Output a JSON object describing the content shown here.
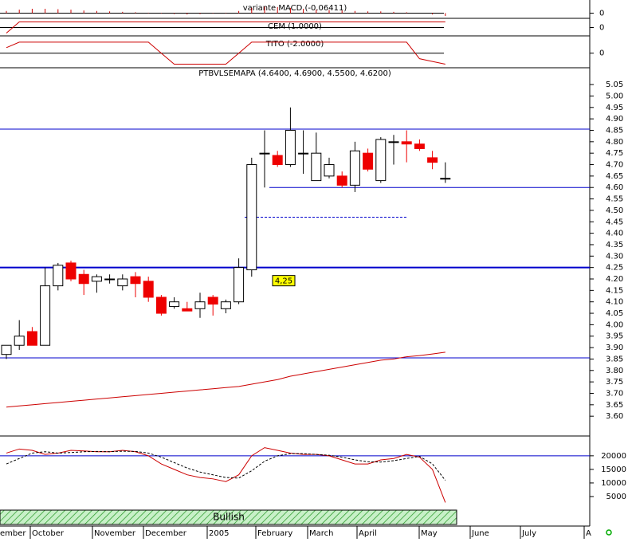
{
  "chart_data": [
    {
      "type": "bar",
      "title": "variante MACD (-0.06411)",
      "ylim": [
        -0.1,
        0.3
      ],
      "yticks": [
        0
      ],
      "color": "#cc0000",
      "values": [
        0.05,
        0.08,
        0.1,
        0.1,
        0.09,
        0.08,
        0.06,
        0.05,
        0.04,
        0.03,
        0.02,
        0.01,
        -0.01,
        -0.02,
        -0.03,
        -0.02,
        -0.01,
        0.01,
        0.05,
        0.12,
        0.15,
        0.14,
        0.12,
        0.1,
        0.08,
        0.07,
        0.06,
        0.05,
        0.04,
        0.04,
        0.03,
        0.02,
        0.0,
        -0.03,
        -0.06411
      ]
    },
    {
      "type": "line",
      "title": "CEM (1.0000)",
      "ylim": [
        -1.5,
        1.5
      ],
      "yticks": [
        0
      ],
      "series": [
        {
          "color": "#cc0000",
          "values": [
            -1,
            1,
            1,
            1,
            1,
            1,
            1,
            1,
            1,
            1,
            1,
            1,
            1,
            1,
            1,
            1,
            1,
            1,
            1,
            1,
            1,
            1,
            1,
            1,
            1,
            1,
            1,
            1,
            1,
            1,
            1,
            1,
            1,
            1,
            1
          ]
        }
      ]
    },
    {
      "type": "line",
      "title": "TITO (-2.0000)",
      "ylim": [
        -2.5,
        3
      ],
      "yticks": [
        0
      ],
      "series": [
        {
          "color": "#cc0000",
          "values": [
            1,
            2,
            2,
            2,
            2,
            2,
            2,
            2,
            2,
            2,
            2,
            2,
            0,
            -2,
            -2,
            -2,
            -2,
            -2,
            0,
            2,
            2,
            2,
            2,
            2,
            2,
            2,
            2,
            2,
            2,
            2,
            2,
            2,
            -1,
            -1.5,
            -2
          ]
        }
      ]
    },
    {
      "type": "candlestick",
      "title": "PTBVLSEMAPA (4.6400, 4.6900, 4.5500, 4.6200)",
      "ylim": [
        3.51,
        5.12
      ],
      "yticks": [
        {
          "value": 3.6,
          "label": "3.60"
        },
        {
          "value": 3.65,
          "label": "3.65"
        },
        {
          "value": 3.7,
          "label": "3.70"
        },
        {
          "value": 3.75,
          "label": "3.75"
        },
        {
          "value": 3.8,
          "label": "3.80"
        },
        {
          "value": 3.85,
          "label": "3.85"
        },
        {
          "value": 3.9,
          "label": "3.90"
        },
        {
          "value": 3.95,
          "label": "3.95"
        },
        {
          "value": 4.0,
          "label": "4.00"
        },
        {
          "value": 4.05,
          "label": "4.05"
        },
        {
          "value": 4.1,
          "label": "4.10"
        },
        {
          "value": 4.15,
          "label": "4.15"
        },
        {
          "value": 4.2,
          "label": "4.20"
        },
        {
          "value": 4.25,
          "label": "4.25"
        },
        {
          "value": 4.3,
          "label": "4.30"
        },
        {
          "value": 4.35,
          "label": "4.35"
        },
        {
          "value": 4.4,
          "label": "4.40"
        },
        {
          "value": 4.45,
          "label": "4.45"
        },
        {
          "value": 4.5,
          "label": "4.50"
        },
        {
          "value": 4.55,
          "label": "4.55"
        },
        {
          "value": 4.6,
          "label": "4.60"
        },
        {
          "value": 4.65,
          "label": "4.65"
        },
        {
          "value": 4.7,
          "label": "4.70"
        },
        {
          "value": 4.75,
          "label": "4.75"
        },
        {
          "value": 4.8,
          "label": "4.80"
        },
        {
          "value": 4.85,
          "label": "4.85"
        },
        {
          "value": 4.9,
          "label": "4.90"
        },
        {
          "value": 4.95,
          "label": "4.95"
        },
        {
          "value": 5.0,
          "label": "5.00"
        },
        {
          "value": 5.05,
          "label": "5.05"
        }
      ],
      "open": [
        3.87,
        3.91,
        3.97,
        3.91,
        4.17,
        4.27,
        4.22,
        4.19,
        4.2,
        4.17,
        4.21,
        4.19,
        4.12,
        4.08,
        4.07,
        4.07,
        4.12,
        4.07,
        4.1,
        4.24,
        4.75,
        4.74,
        4.7,
        4.75,
        4.63,
        4.65,
        4.65,
        4.61,
        4.75,
        4.63,
        4.8,
        4.8,
        4.79,
        4.73,
        4.64
      ],
      "high": [
        3.91,
        4.02,
        3.99,
        4.25,
        4.27,
        4.28,
        4.24,
        4.22,
        4.22,
        4.22,
        4.23,
        4.21,
        4.13,
        4.12,
        4.1,
        4.14,
        4.13,
        4.11,
        4.29,
        4.73,
        4.85,
        4.76,
        4.95,
        4.85,
        4.84,
        4.73,
        4.67,
        4.8,
        4.77,
        4.82,
        4.83,
        4.85,
        4.81,
        4.76,
        4.71
      ],
      "low": [
        3.85,
        3.89,
        3.91,
        3.91,
        4.15,
        4.19,
        4.13,
        4.14,
        4.18,
        4.15,
        4.12,
        4.1,
        4.04,
        4.07,
        4.06,
        4.03,
        4.04,
        4.05,
        4.09,
        4.21,
        4.6,
        4.69,
        4.69,
        4.66,
        4.63,
        4.64,
        4.6,
        4.58,
        4.67,
        4.62,
        4.7,
        4.71,
        4.76,
        4.68,
        4.62
      ],
      "close": [
        3.91,
        3.95,
        3.91,
        4.17,
        4.26,
        4.2,
        4.18,
        4.21,
        4.2,
        4.2,
        4.18,
        4.12,
        4.05,
        4.1,
        4.06,
        4.1,
        4.09,
        4.1,
        4.25,
        4.7,
        4.75,
        4.7,
        4.85,
        4.75,
        4.75,
        4.7,
        4.61,
        4.76,
        4.68,
        4.81,
        4.8,
        4.79,
        4.77,
        4.71,
        4.64
      ],
      "up_color": "#ffffff",
      "down_color": "#ee0000",
      "series": [
        {
          "color": "#cc0000",
          "values": [
            3.64,
            3.645,
            3.65,
            3.655,
            3.66,
            3.665,
            3.67,
            3.675,
            3.68,
            3.685,
            3.69,
            3.695,
            3.7,
            3.705,
            3.71,
            3.715,
            3.72,
            3.725,
            3.73,
            3.74,
            3.75,
            3.76,
            3.775,
            3.785,
            3.795,
            3.805,
            3.815,
            3.825,
            3.835,
            3.845,
            3.85,
            3.86,
            3.865,
            3.872,
            3.88
          ]
        }
      ],
      "levels": [
        4.855,
        4.6,
        4.47,
        4.25,
        3.855
      ],
      "level_color": "#0000cc",
      "annotation": {
        "value": 4.25,
        "label": "4,25"
      },
      "x_labels": [
        "ember",
        "October",
        "November",
        "December",
        "2005",
        "February",
        "March",
        "April",
        "May",
        "June",
        "July",
        "A"
      ],
      "status": "Bullish"
    },
    {
      "type": "line",
      "ylim": [
        0,
        27000
      ],
      "yticks": [
        5000,
        10000,
        15000,
        20000
      ],
      "series": [
        {
          "color": "#cc0000",
          "values": [
            21000,
            22500,
            22000,
            20500,
            21000,
            22000,
            21800,
            21500,
            21500,
            22000,
            21500,
            20000,
            17000,
            15000,
            13000,
            12000,
            11500,
            10500,
            13000,
            20000,
            23000,
            22000,
            21000,
            20500,
            20500,
            20000,
            18500,
            17000,
            17000,
            18500,
            19000,
            20500,
            19500,
            15000,
            2800
          ]
        },
        {
          "color": "#000000",
          "dash": true,
          "values": [
            17000,
            19000,
            21000,
            21500,
            21000,
            21200,
            21500,
            21600,
            21500,
            21700,
            21600,
            21000,
            19500,
            17500,
            15500,
            14000,
            13000,
            12000,
            11800,
            14500,
            18000,
            20000,
            20800,
            20800,
            20500,
            20200,
            19500,
            18500,
            17800,
            17700,
            18200,
            19000,
            19800,
            17000,
            11000
          ]
        }
      ]
    }
  ]
}
